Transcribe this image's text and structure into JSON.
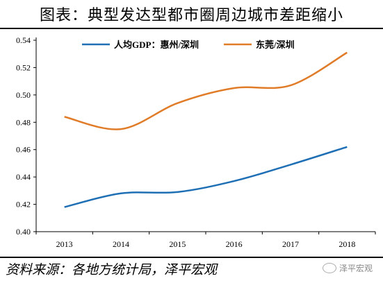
{
  "title": "图表：典型发达型都市圈周边城市差距缩小",
  "source": "资料来源：各地方统计局，泽平宏观",
  "watermark": "泽平宏观",
  "colors": {
    "series1": "#1f6fb5",
    "series2": "#e07b27"
  },
  "chart_data": {
    "type": "line",
    "x": [
      "2013",
      "2014",
      "2015",
      "2016",
      "2017",
      "2018"
    ],
    "ylim": [
      0.4,
      0.54
    ],
    "yticks": [
      "0.40",
      "0.42",
      "0.44",
      "0.46",
      "0.48",
      "0.50",
      "0.52",
      "0.54"
    ],
    "legend_position": "top",
    "series": [
      {
        "name": "人均GDP：惠州/深圳",
        "values": [
          0.418,
          0.428,
          0.429,
          0.437,
          0.449,
          0.462
        ]
      },
      {
        "name": "东莞/深圳",
        "values": [
          0.484,
          0.475,
          0.494,
          0.505,
          0.507,
          0.531
        ]
      }
    ]
  }
}
